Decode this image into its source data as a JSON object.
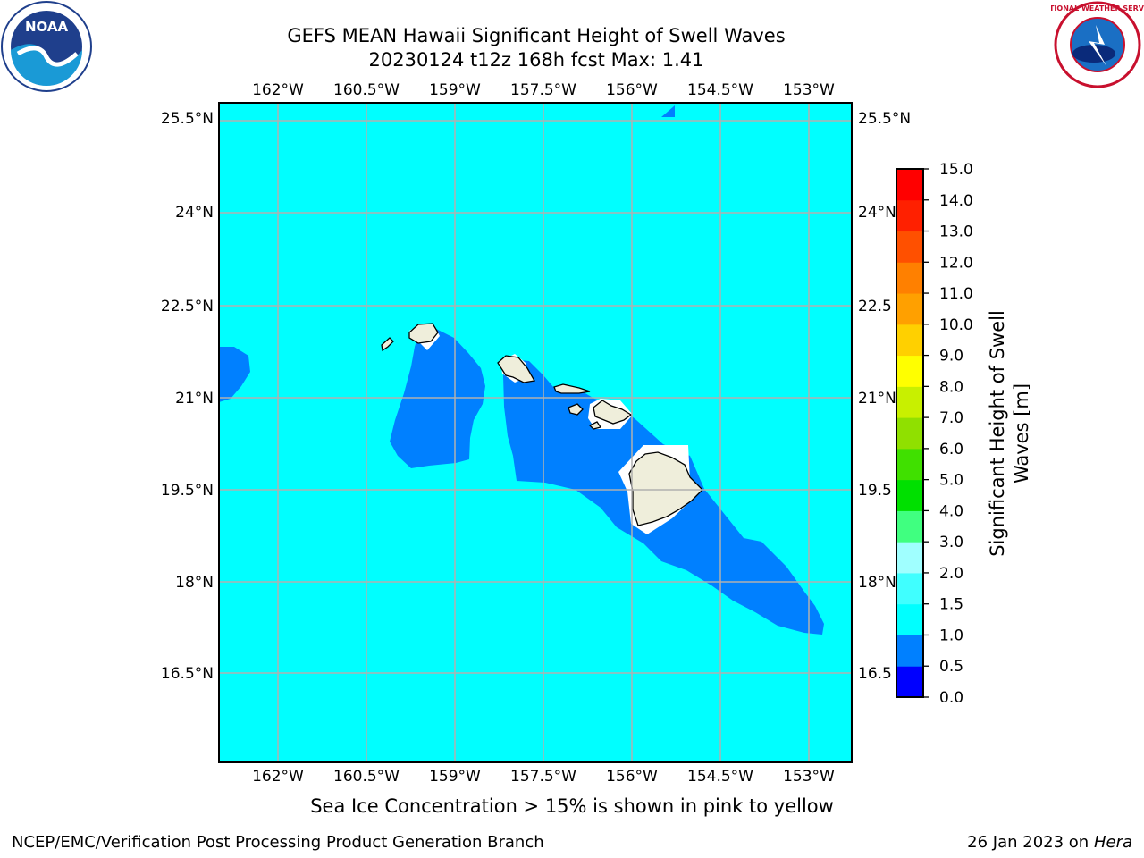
{
  "title_line1": "GEFS MEAN Hawaii Significant Height of Swell Waves",
  "title_line2": "20230124 t12z 168h fcst   Max: 1.41",
  "map": {
    "lon_ticks": [
      "162°W",
      "160.5°W",
      "159°W",
      "157.5°W",
      "156°W",
      "154.5°W",
      "153°W"
    ],
    "lat_ticks_left": [
      "25.5°N",
      "24°N",
      "22.5°N",
      "21°N",
      "19.5°N",
      "18°N",
      "16.5°N"
    ],
    "lat_ticks_right": [
      "25.5°N",
      "24°N",
      "22.5",
      "21°N",
      "19.5",
      "18°N",
      "16.5"
    ],
    "colors": {
      "background_swell": "#00ffff",
      "swell_0_5_to_1_0": "#0080ff",
      "land": "#efeedb",
      "grid": "#b0b0b0"
    }
  },
  "colorbar": {
    "label": "Significant Height of Swell Waves [m]",
    "label_line1": "Significant Height of Swell",
    "label_line2": "Waves [m]",
    "ticks": [
      "0.0",
      "0.5",
      "1.0",
      "1.5",
      "2.0",
      "3.0",
      "4.0",
      "5.0",
      "6.0",
      "7.0",
      "8.0",
      "9.0",
      "10.0",
      "11.0",
      "12.0",
      "13.0",
      "14.0",
      "15.0"
    ],
    "colors": [
      "#0000ff",
      "#0080ff",
      "#00ffff",
      "#40ffff",
      "#a0ffff",
      "#40ff80",
      "#00e000",
      "#40e000",
      "#90e000",
      "#c8f000",
      "#ffff00",
      "#ffd000",
      "#ffa000",
      "#ff8000",
      "#ff5000",
      "#ff2000",
      "#ff0000"
    ]
  },
  "note": "Sea Ice Concentration > 15% is shown in pink to yellow",
  "footer_left": "NCEP/EMC/Verification Post Processing Product Generation Branch",
  "footer_right_date": "26 Jan 2023 on ",
  "footer_right_host": "Hera",
  "logos": {
    "noaa_text": "NOAA",
    "nws_text": "NATIONAL WEATHER SERVICE"
  }
}
